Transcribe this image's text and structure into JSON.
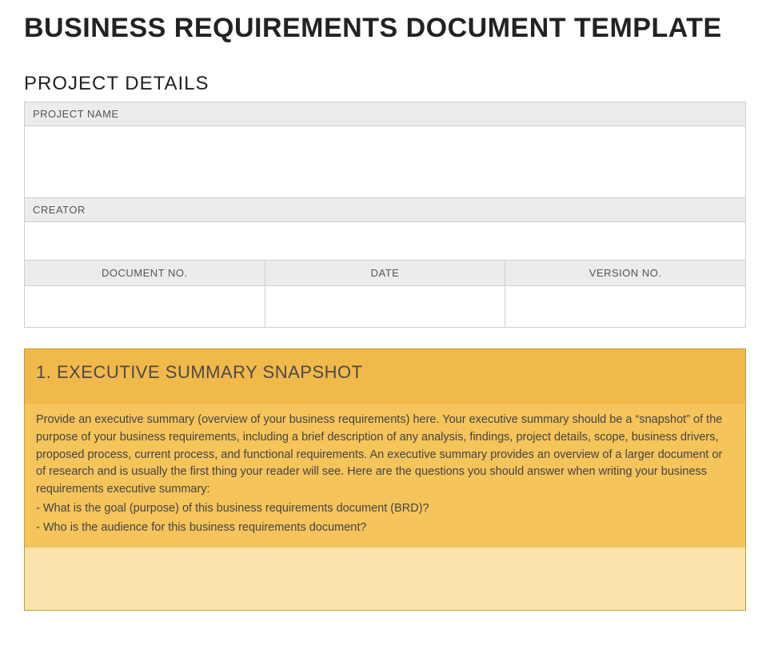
{
  "document": {
    "title": "BUSINESS REQUIREMENTS DOCUMENT TEMPLATE"
  },
  "project_details": {
    "heading": "PROJECT DETAILS",
    "labels": {
      "project_name": "PROJECT NAME",
      "creator": "CREATOR",
      "document_no": "DOCUMENT NO.",
      "date": "DATE",
      "version_no": "VERSION NO."
    },
    "values": {
      "project_name": "",
      "creator": "",
      "document_no": "",
      "date": "",
      "version_no": ""
    }
  },
  "executive_summary": {
    "heading": "1. EXECUTIVE SUMMARY SNAPSHOT",
    "intro": "Provide an executive summary (overview of your business requirements) here. Your executive summary should be a “snapshot” of the purpose of your business requirements, including a brief description of any analysis, findings, project details, scope, business drivers, proposed process, current process, and functional requirements. An executive summary provides an overview of a larger document or of research and is usually the first thing your reader will see. Here are the questions you should answer when writing your business requirements executive summary:",
    "bullets": [
      "- What is the goal (purpose) of this business requirements document (BRD)?",
      "- Who is the audience for this business requirements document?"
    ]
  },
  "colors": {
    "label_bg": "#ececec",
    "border": "#cfcfcf",
    "exec_header_bg": "#f1b94a",
    "exec_body_bg": "#f5c45b",
    "exec_fill_bg": "#fbe3ac",
    "exec_border": "#c59a2e",
    "title_color": "#222222",
    "body_text": "#444444"
  }
}
